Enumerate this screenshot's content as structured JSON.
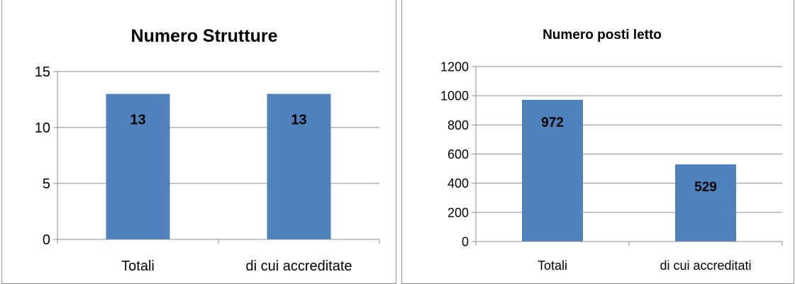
{
  "chart_data": [
    {
      "type": "bar",
      "title": "Numero Strutture",
      "categories": [
        "Totali",
        "di cui accreditate"
      ],
      "values": [
        13,
        13
      ],
      "data_labels": [
        "13",
        "13"
      ],
      "yticks": [
        "0",
        "5",
        "10",
        "15"
      ],
      "ylim": [
        0,
        15
      ],
      "grid": true,
      "legend": "none",
      "bar_color": "#4f81bd"
    },
    {
      "type": "bar",
      "title": "Numero posti letto",
      "categories": [
        "Totali",
        "di cui accreditati"
      ],
      "values": [
        972,
        529
      ],
      "data_labels": [
        "972",
        "529"
      ],
      "yticks": [
        "0",
        "200",
        "400",
        "600",
        "800",
        "1000",
        "1200"
      ],
      "ylim": [
        0,
        1200
      ],
      "grid": true,
      "legend": "none",
      "bar_color": "#4f81bd"
    }
  ]
}
